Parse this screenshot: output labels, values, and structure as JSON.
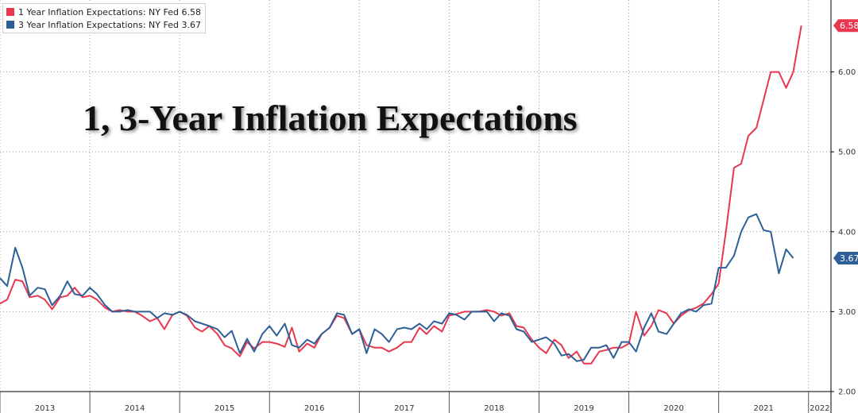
{
  "legend": {
    "items": [
      {
        "label": "1 Year Inflation Expectations: NY Fed 6.58",
        "color": "#e8374f"
      },
      {
        "label": "3 Year Inflation Expectations: NY Fed 3.67",
        "color": "#2e5f96"
      }
    ]
  },
  "overlay_title": "1, 3-Year Inflation Expectations",
  "chart_data": {
    "type": "line",
    "grid": true,
    "x_range": [
      2013.0,
      2022.25
    ],
    "ylim": [
      2.0,
      6.9
    ],
    "y_ticks": [
      "2.00",
      "3.00",
      "4.00",
      "5.00",
      "6.00"
    ],
    "x_tick_labels": [
      "2013",
      "2014",
      "2015",
      "2016",
      "2017",
      "2018",
      "2019",
      "2020",
      "2021",
      "2022"
    ],
    "last_value_badges": [
      "6.58",
      "3.67"
    ],
    "series": [
      {
        "name": "1 Year Inflation Expectations: NY Fed",
        "color": "#e8374f",
        "last_value": 6.58,
        "points": [
          [
            2013.0,
            3.1
          ],
          [
            2013.08,
            3.15
          ],
          [
            2013.17,
            3.4
          ],
          [
            2013.25,
            3.38
          ],
          [
            2013.33,
            3.18
          ],
          [
            2013.42,
            3.2
          ],
          [
            2013.5,
            3.15
          ],
          [
            2013.58,
            3.03
          ],
          [
            2013.67,
            3.18
          ],
          [
            2013.75,
            3.2
          ],
          [
            2013.83,
            3.3
          ],
          [
            2013.92,
            3.18
          ],
          [
            2014.0,
            3.2
          ],
          [
            2014.08,
            3.15
          ],
          [
            2014.17,
            3.05
          ],
          [
            2014.25,
            3.0
          ],
          [
            2014.33,
            3.02
          ],
          [
            2014.42,
            3.0
          ],
          [
            2014.5,
            3.0
          ],
          [
            2014.58,
            2.95
          ],
          [
            2014.67,
            2.88
          ],
          [
            2014.75,
            2.92
          ],
          [
            2014.83,
            2.78
          ],
          [
            2014.92,
            2.96
          ],
          [
            2015.0,
            3.0
          ],
          [
            2015.08,
            2.95
          ],
          [
            2015.17,
            2.8
          ],
          [
            2015.25,
            2.75
          ],
          [
            2015.33,
            2.82
          ],
          [
            2015.42,
            2.72
          ],
          [
            2015.5,
            2.58
          ],
          [
            2015.58,
            2.54
          ],
          [
            2015.67,
            2.44
          ],
          [
            2015.75,
            2.62
          ],
          [
            2015.83,
            2.54
          ],
          [
            2015.92,
            2.62
          ],
          [
            2016.0,
            2.62
          ],
          [
            2016.08,
            2.6
          ],
          [
            2016.17,
            2.56
          ],
          [
            2016.25,
            2.8
          ],
          [
            2016.33,
            2.5
          ],
          [
            2016.42,
            2.6
          ],
          [
            2016.5,
            2.55
          ],
          [
            2016.58,
            2.72
          ],
          [
            2016.67,
            2.8
          ],
          [
            2016.75,
            2.95
          ],
          [
            2016.83,
            2.92
          ],
          [
            2016.92,
            2.72
          ],
          [
            2017.0,
            2.78
          ],
          [
            2017.08,
            2.58
          ],
          [
            2017.17,
            2.55
          ],
          [
            2017.25,
            2.55
          ],
          [
            2017.33,
            2.5
          ],
          [
            2017.42,
            2.55
          ],
          [
            2017.5,
            2.62
          ],
          [
            2017.58,
            2.62
          ],
          [
            2017.67,
            2.8
          ],
          [
            2017.75,
            2.72
          ],
          [
            2017.83,
            2.82
          ],
          [
            2017.92,
            2.75
          ],
          [
            2018.0,
            2.95
          ],
          [
            2018.08,
            2.97
          ],
          [
            2018.17,
            3.0
          ],
          [
            2018.25,
            3.0
          ],
          [
            2018.33,
            3.0
          ],
          [
            2018.42,
            3.02
          ],
          [
            2018.5,
            3.0
          ],
          [
            2018.58,
            2.95
          ],
          [
            2018.67,
            2.98
          ],
          [
            2018.75,
            2.82
          ],
          [
            2018.83,
            2.8
          ],
          [
            2018.92,
            2.65
          ],
          [
            2019.0,
            2.55
          ],
          [
            2019.08,
            2.48
          ],
          [
            2019.17,
            2.65
          ],
          [
            2019.25,
            2.58
          ],
          [
            2019.33,
            2.42
          ],
          [
            2019.42,
            2.5
          ],
          [
            2019.5,
            2.35
          ],
          [
            2019.58,
            2.35
          ],
          [
            2019.67,
            2.5
          ],
          [
            2019.75,
            2.52
          ],
          [
            2019.83,
            2.55
          ],
          [
            2019.92,
            2.55
          ],
          [
            2020.0,
            2.6
          ],
          [
            2020.08,
            3.0
          ],
          [
            2020.17,
            2.7
          ],
          [
            2020.25,
            2.82
          ],
          [
            2020.33,
            3.02
          ],
          [
            2020.42,
            2.98
          ],
          [
            2020.5,
            2.85
          ],
          [
            2020.58,
            2.95
          ],
          [
            2020.67,
            3.02
          ],
          [
            2020.75,
            3.05
          ],
          [
            2020.83,
            3.1
          ],
          [
            2020.92,
            3.22
          ],
          [
            2021.0,
            3.35
          ],
          [
            2021.08,
            4.0
          ],
          [
            2021.17,
            4.8
          ],
          [
            2021.25,
            4.85
          ],
          [
            2021.33,
            5.2
          ],
          [
            2021.42,
            5.3
          ],
          [
            2021.5,
            5.65
          ],
          [
            2021.58,
            6.0
          ],
          [
            2021.67,
            6.0
          ],
          [
            2021.75,
            5.8
          ],
          [
            2021.83,
            6.0
          ],
          [
            2021.92,
            6.58
          ]
        ]
      },
      {
        "name": "3 Year Inflation Expectations: NY Fed",
        "color": "#2e5f96",
        "last_value": 3.67,
        "points": [
          [
            2013.0,
            3.42
          ],
          [
            2013.08,
            3.32
          ],
          [
            2013.17,
            3.8
          ],
          [
            2013.25,
            3.55
          ],
          [
            2013.33,
            3.2
          ],
          [
            2013.42,
            3.3
          ],
          [
            2013.5,
            3.28
          ],
          [
            2013.58,
            3.08
          ],
          [
            2013.67,
            3.2
          ],
          [
            2013.75,
            3.38
          ],
          [
            2013.83,
            3.22
          ],
          [
            2013.92,
            3.2
          ],
          [
            2014.0,
            3.3
          ],
          [
            2014.08,
            3.22
          ],
          [
            2014.17,
            3.08
          ],
          [
            2014.25,
            3.0
          ],
          [
            2014.33,
            3.0
          ],
          [
            2014.42,
            3.02
          ],
          [
            2014.5,
            3.0
          ],
          [
            2014.58,
            3.0
          ],
          [
            2014.67,
            3.0
          ],
          [
            2014.75,
            2.92
          ],
          [
            2014.83,
            2.98
          ],
          [
            2014.92,
            2.96
          ],
          [
            2015.0,
            3.0
          ],
          [
            2015.08,
            2.96
          ],
          [
            2015.17,
            2.88
          ],
          [
            2015.25,
            2.85
          ],
          [
            2015.33,
            2.82
          ],
          [
            2015.42,
            2.78
          ],
          [
            2015.5,
            2.68
          ],
          [
            2015.58,
            2.76
          ],
          [
            2015.67,
            2.48
          ],
          [
            2015.75,
            2.66
          ],
          [
            2015.83,
            2.5
          ],
          [
            2015.92,
            2.72
          ],
          [
            2016.0,
            2.82
          ],
          [
            2016.08,
            2.7
          ],
          [
            2016.17,
            2.85
          ],
          [
            2016.25,
            2.58
          ],
          [
            2016.33,
            2.55
          ],
          [
            2016.42,
            2.65
          ],
          [
            2016.5,
            2.6
          ],
          [
            2016.58,
            2.72
          ],
          [
            2016.67,
            2.8
          ],
          [
            2016.75,
            2.98
          ],
          [
            2016.83,
            2.96
          ],
          [
            2016.92,
            2.72
          ],
          [
            2017.0,
            2.78
          ],
          [
            2017.08,
            2.48
          ],
          [
            2017.17,
            2.78
          ],
          [
            2017.25,
            2.72
          ],
          [
            2017.33,
            2.62
          ],
          [
            2017.42,
            2.78
          ],
          [
            2017.5,
            2.8
          ],
          [
            2017.58,
            2.78
          ],
          [
            2017.67,
            2.85
          ],
          [
            2017.75,
            2.78
          ],
          [
            2017.83,
            2.88
          ],
          [
            2017.92,
            2.85
          ],
          [
            2018.0,
            2.98
          ],
          [
            2018.08,
            2.96
          ],
          [
            2018.17,
            2.9
          ],
          [
            2018.25,
            3.0
          ],
          [
            2018.33,
            3.0
          ],
          [
            2018.42,
            3.0
          ],
          [
            2018.5,
            2.88
          ],
          [
            2018.58,
            2.98
          ],
          [
            2018.67,
            2.95
          ],
          [
            2018.75,
            2.78
          ],
          [
            2018.83,
            2.75
          ],
          [
            2018.92,
            2.62
          ],
          [
            2019.0,
            2.65
          ],
          [
            2019.08,
            2.68
          ],
          [
            2019.17,
            2.6
          ],
          [
            2019.25,
            2.45
          ],
          [
            2019.33,
            2.47
          ],
          [
            2019.42,
            2.38
          ],
          [
            2019.5,
            2.4
          ],
          [
            2019.58,
            2.55
          ],
          [
            2019.67,
            2.55
          ],
          [
            2019.75,
            2.58
          ],
          [
            2019.83,
            2.42
          ],
          [
            2019.92,
            2.62
          ],
          [
            2020.0,
            2.62
          ],
          [
            2020.08,
            2.5
          ],
          [
            2020.17,
            2.8
          ],
          [
            2020.25,
            2.98
          ],
          [
            2020.33,
            2.75
          ],
          [
            2020.42,
            2.72
          ],
          [
            2020.5,
            2.85
          ],
          [
            2020.58,
            2.98
          ],
          [
            2020.67,
            3.03
          ],
          [
            2020.75,
            3.0
          ],
          [
            2020.83,
            3.08
          ],
          [
            2020.92,
            3.1
          ],
          [
            2021.0,
            3.55
          ],
          [
            2021.08,
            3.55
          ],
          [
            2021.17,
            3.7
          ],
          [
            2021.25,
            4.0
          ],
          [
            2021.33,
            4.18
          ],
          [
            2021.42,
            4.22
          ],
          [
            2021.5,
            4.02
          ],
          [
            2021.58,
            4.0
          ],
          [
            2021.67,
            3.48
          ],
          [
            2021.75,
            3.78
          ],
          [
            2021.83,
            3.67
          ]
        ]
      }
    ]
  }
}
